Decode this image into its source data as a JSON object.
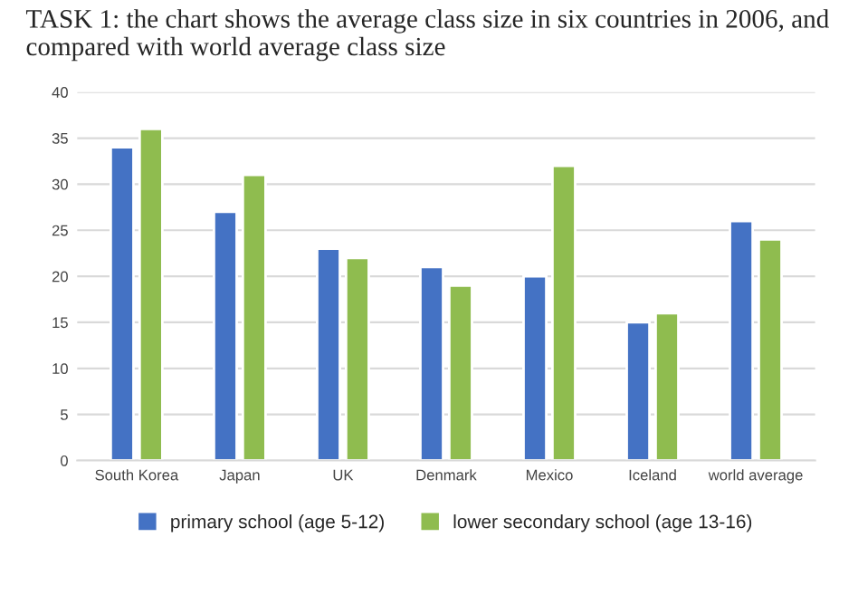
{
  "chart_data": {
    "type": "bar",
    "title": "TASK 1: the chart shows the average class size in six countries in 2006, and compared with world average class size",
    "categories": [
      "South Korea",
      "Japan",
      "UK",
      "Denmark",
      "Mexico",
      "Iceland",
      "world average"
    ],
    "series": [
      {
        "name": "primary school (age 5-12)",
        "color": "#4472c4",
        "values": [
          34,
          27,
          23,
          21,
          20,
          15,
          26
        ]
      },
      {
        "name": "lower secondary school (age 13-16)",
        "color": "#8fbc4f",
        "values": [
          36,
          31,
          22,
          19,
          32,
          16,
          24
        ]
      }
    ],
    "ylim": [
      0,
      40
    ],
    "yticks": [
      0,
      5,
      10,
      15,
      20,
      25,
      30,
      35,
      40
    ],
    "grid": "y",
    "legend": "bottom"
  }
}
